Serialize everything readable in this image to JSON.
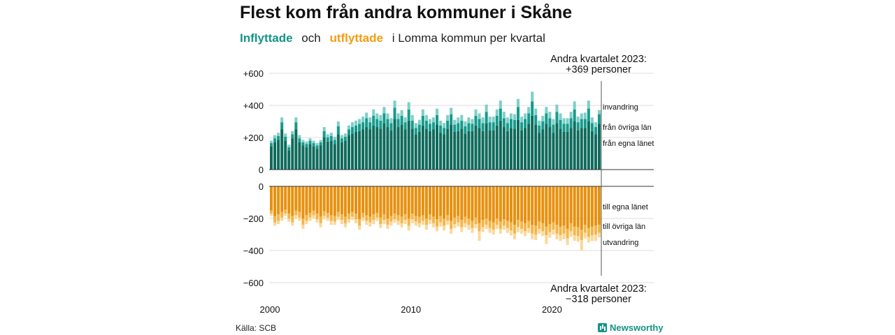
{
  "title": "Flest kom från andra kommuner i Skåne",
  "subtitle": {
    "in_word": "Inflyttade",
    "and_word": "och",
    "out_word": "utflyttade",
    "rest": "i Lomma  kommun  per  kvartal"
  },
  "source": "Källa: SCB",
  "brand": "Newsworthy",
  "colors": {
    "in_own": "#0f6b5c",
    "in_other": "#169b8c",
    "in_immig": "#7dd0c8",
    "out_own": "#e8900e",
    "out_other": "#f5b548",
    "out_emig": "#fbd89a"
  },
  "chart_data": {
    "type": "bar",
    "stacked": true,
    "x_start_year": 2000,
    "periods": 94,
    "xticks": [
      "2000",
      "2010",
      "2020"
    ],
    "yticks_top": [
      "+600",
      "+400",
      "+200",
      "0"
    ],
    "yticks_bottom": [
      "0",
      "−200",
      "−400",
      "−600"
    ],
    "ylim_top": [
      0,
      600
    ],
    "ylim_bottom": [
      -600,
      0
    ],
    "annotation_top": [
      "Andra kvartalet 2023:",
      "+369 personer"
    ],
    "annotation_bottom": [
      "Andra kvartalet 2023:",
      "−318 personer"
    ],
    "labels_top": [
      "invandring",
      "från övriga län",
      "från egna länet"
    ],
    "labels_bottom": [
      "till egna länet",
      "till övriga län",
      "utvandring"
    ],
    "series": [
      {
        "name": "från egna länet",
        "group": "in",
        "values": [
          145,
          170,
          185,
          250,
          180,
          120,
          195,
          250,
          170,
          150,
          140,
          160,
          145,
          130,
          150,
          200,
          175,
          180,
          160,
          220,
          170,
          180,
          215,
          225,
          235,
          240,
          250,
          265,
          250,
          275,
          265,
          255,
          290,
          265,
          245,
          315,
          265,
          280,
          250,
          305,
          255,
          220,
          235,
          275,
          255,
          240,
          250,
          280,
          230,
          220,
          255,
          280,
          235,
          240,
          255,
          225,
          240,
          240,
          275,
          260,
          240,
          290,
          245,
          245,
          275,
          305,
          265,
          240,
          260,
          255,
          310,
          245,
          260,
          285,
          335,
          280,
          230,
          250,
          285,
          265,
          230,
          290,
          255,
          235,
          235,
          260,
          300,
          245,
          260,
          260,
          300,
          240,
          220,
          285
        ]
      },
      {
        "name": "från övriga län",
        "group": "in",
        "values": [
          20,
          25,
          25,
          45,
          25,
          20,
          25,
          45,
          25,
          20,
          20,
          20,
          20,
          20,
          20,
          40,
          25,
          30,
          25,
          50,
          25,
          25,
          35,
          40,
          40,
          45,
          45,
          55,
          45,
          60,
          50,
          50,
          60,
          50,
          45,
          70,
          50,
          55,
          45,
          70,
          50,
          40,
          45,
          60,
          50,
          45,
          45,
          60,
          45,
          40,
          50,
          65,
          45,
          50,
          50,
          45,
          50,
          45,
          60,
          55,
          50,
          70,
          50,
          50,
          60,
          75,
          55,
          50,
          55,
          55,
          80,
          50,
          55,
          65,
          90,
          60,
          45,
          50,
          65,
          55,
          50,
          70,
          55,
          50,
          50,
          60,
          75,
          50,
          55,
          55,
          80,
          50,
          45,
          60
        ]
      },
      {
        "name": "invandring",
        "group": "in",
        "values": [
          15,
          20,
          20,
          30,
          20,
          15,
          20,
          30,
          20,
          15,
          15,
          15,
          15,
          15,
          15,
          25,
          20,
          20,
          20,
          30,
          20,
          20,
          25,
          30,
          30,
          30,
          35,
          35,
          30,
          40,
          35,
          35,
          40,
          35,
          30,
          45,
          35,
          35,
          30,
          45,
          35,
          30,
          30,
          40,
          35,
          30,
          30,
          40,
          30,
          30,
          35,
          40,
          30,
          35,
          35,
          30,
          35,
          30,
          40,
          35,
          35,
          45,
          35,
          35,
          40,
          50,
          40,
          35,
          35,
          35,
          50,
          35,
          35,
          40,
          60,
          40,
          30,
          35,
          40,
          40,
          35,
          45,
          40,
          35,
          35,
          40,
          50,
          35,
          35,
          40,
          50,
          35,
          30,
          25
        ]
      },
      {
        "name": "till egna länet",
        "group": "out",
        "values": [
          150,
          185,
          175,
          160,
          145,
          170,
          185,
          150,
          160,
          200,
          180,
          165,
          150,
          170,
          190,
          155,
          165,
          180,
          185,
          160,
          175,
          190,
          170,
          160,
          170,
          205,
          165,
          180,
          190,
          175,
          165,
          195,
          175,
          200,
          185,
          170,
          180,
          190,
          175,
          200,
          170,
          185,
          190,
          180,
          200,
          175,
          190,
          205,
          185,
          200,
          180,
          215,
          195,
          185,
          210,
          190,
          200,
          215,
          195,
          230,
          210,
          200,
          215,
          225,
          200,
          220,
          205,
          215,
          225,
          240,
          210,
          220,
          230,
          215,
          240,
          245,
          220,
          230,
          250,
          235,
          225,
          240,
          250,
          245,
          265,
          230,
          250,
          255,
          270,
          240,
          260,
          250,
          245,
          240
        ]
      },
      {
        "name": "till övriga län",
        "group": "out",
        "values": [
          20,
          40,
          40,
          35,
          25,
          30,
          40,
          30,
          35,
          40,
          35,
          30,
          30,
          35,
          40,
          30,
          30,
          35,
          35,
          30,
          35,
          40,
          35,
          30,
          35,
          40,
          30,
          35,
          35,
          35,
          30,
          40,
          35,
          40,
          35,
          35,
          35,
          40,
          35,
          45,
          35,
          35,
          40,
          35,
          40,
          35,
          40,
          45,
          40,
          45,
          35,
          50,
          40,
          40,
          45,
          40,
          40,
          45,
          40,
          50,
          45,
          40,
          45,
          45,
          40,
          45,
          40,
          45,
          50,
          55,
          45,
          45,
          50,
          45,
          55,
          55,
          45,
          50,
          55,
          50,
          45,
          55,
          55,
          50,
          60,
          50,
          55,
          55,
          65,
          50,
          55,
          55,
          55,
          50
        ]
      },
      {
        "name": "utvandring",
        "group": "out",
        "values": [
          15,
          20,
          20,
          20,
          15,
          20,
          20,
          20,
          20,
          25,
          20,
          20,
          20,
          20,
          25,
          20,
          20,
          25,
          20,
          20,
          25,
          25,
          20,
          20,
          25,
          25,
          20,
          25,
          25,
          25,
          20,
          25,
          25,
          25,
          25,
          20,
          25,
          25,
          25,
          30,
          25,
          25,
          25,
          25,
          30,
          25,
          25,
          30,
          25,
          30,
          25,
          30,
          25,
          25,
          30,
          25,
          30,
          30,
          25,
          60,
          30,
          25,
          30,
          30,
          25,
          30,
          25,
          30,
          30,
          35,
          30,
          30,
          30,
          30,
          35,
          35,
          30,
          30,
          55,
          35,
          30,
          35,
          35,
          35,
          40,
          35,
          35,
          35,
          65,
          35,
          35,
          35,
          40,
          28
        ]
      }
    ]
  }
}
